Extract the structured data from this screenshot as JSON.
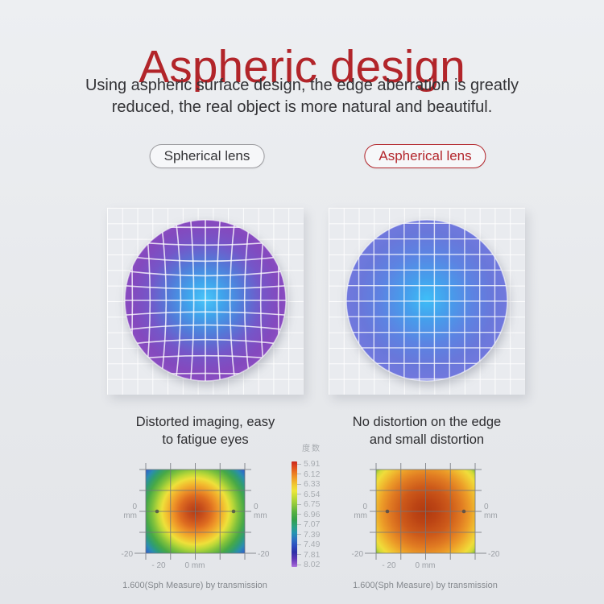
{
  "page": {
    "title": "Aspheric design",
    "subtitle": [
      "Using aspheric surface design, the edge aberration is greatly",
      "reduced, the real object is more natural and beautiful."
    ],
    "accent_color": "#B3262C"
  },
  "spherical": {
    "pill": "Spherical lens",
    "caption": [
      "Distorted imaging, easy",
      "to fatigue eyes"
    ]
  },
  "aspherical": {
    "pill": "Aspherical lens",
    "caption": [
      "No distortion on the edge",
      "and small distortion"
    ]
  },
  "legend": {
    "title": "度数",
    "ticks": [
      "5.91",
      "6.12",
      "6.33",
      "6.54",
      "6.75",
      "6.96",
      "7.07",
      "7.39",
      "7.49",
      "7.81",
      "8.02"
    ]
  },
  "heatmap_axis": {
    "side_top": "0",
    "side_bottom": "mm",
    "corner": "-20",
    "x_first": "- 20",
    "x_center": "0 mm"
  },
  "captions": {
    "measure": "1.600(Sph Measure) by transmission"
  },
  "chart_data": [
    {
      "type": "heatmap",
      "title": "Spherical lens power map",
      "legend_title": "度数",
      "legend_ticks": [
        5.91,
        6.12,
        6.33,
        6.54,
        6.75,
        6.96,
        7.07,
        7.39,
        7.49,
        7.81,
        8.02
      ],
      "x_tick_labels": [
        "-20",
        "0 mm",
        "-20"
      ],
      "y_tick_labels": [
        "0 mm",
        "-20"
      ],
      "caption": "1.600(Sph Measure) by transmission",
      "description": "Power varies strongly from center (red, ~5.91) through yellow/green rings to corners (blue, ~8.02)"
    },
    {
      "type": "heatmap",
      "title": "Aspherical lens power map",
      "legend_title": "度数",
      "legend_ticks": [
        5.91,
        6.12,
        6.33,
        6.54,
        6.75,
        6.96,
        7.07,
        7.39,
        7.49,
        7.81,
        8.02
      ],
      "x_tick_labels": [
        "-20",
        "0 mm",
        "-20"
      ],
      "y_tick_labels": [
        "0 mm",
        "-20"
      ],
      "caption": "1.600(Sph Measure) by transmission",
      "description": "Nearly uniform power: red-orange center, amber/yellow edges, small green corners"
    }
  ]
}
